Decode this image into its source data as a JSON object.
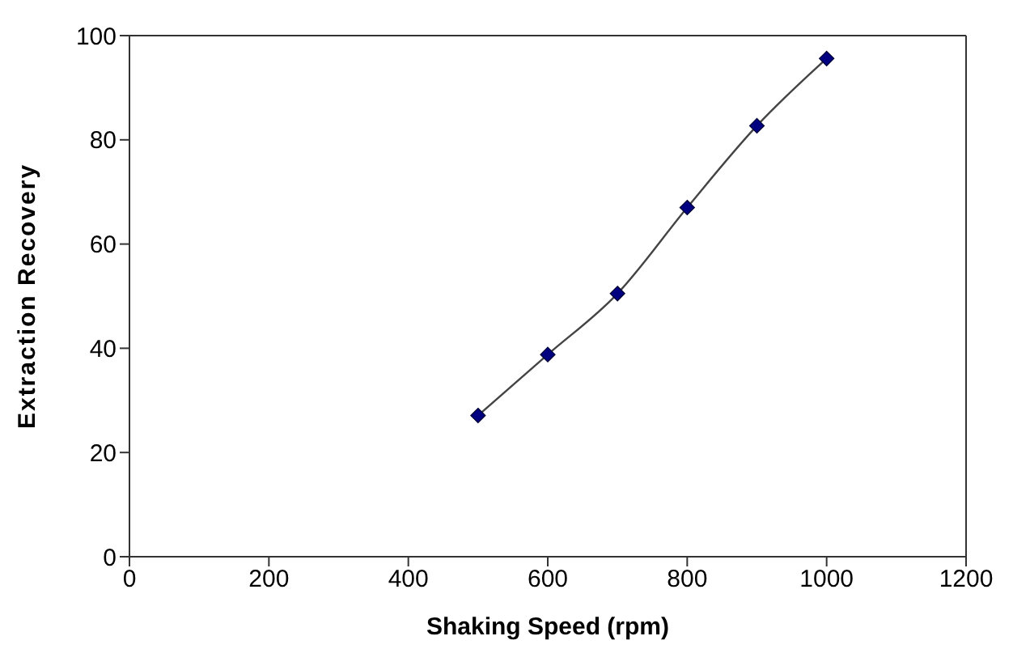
{
  "chart_data": {
    "type": "line",
    "xlabel": "Shaking Speed (rpm)",
    "ylabel": "Extraction Recovery",
    "x": [
      500,
      600,
      700,
      800,
      900,
      1000
    ],
    "series": [
      {
        "color": "#000080",
        "values": [
          27.1,
          38.8,
          50.5,
          67.0,
          82.7,
          95.6
        ]
      }
    ],
    "xlim": [
      0,
      1200
    ],
    "xticks": [
      0,
      200,
      400,
      600,
      800,
      1000,
      1200
    ],
    "ylim": [
      0,
      100
    ],
    "yticks": [
      0,
      20,
      40,
      60,
      80,
      100
    ],
    "grid": false,
    "legend": false,
    "marker": "diamond",
    "line_style": "solid"
  }
}
